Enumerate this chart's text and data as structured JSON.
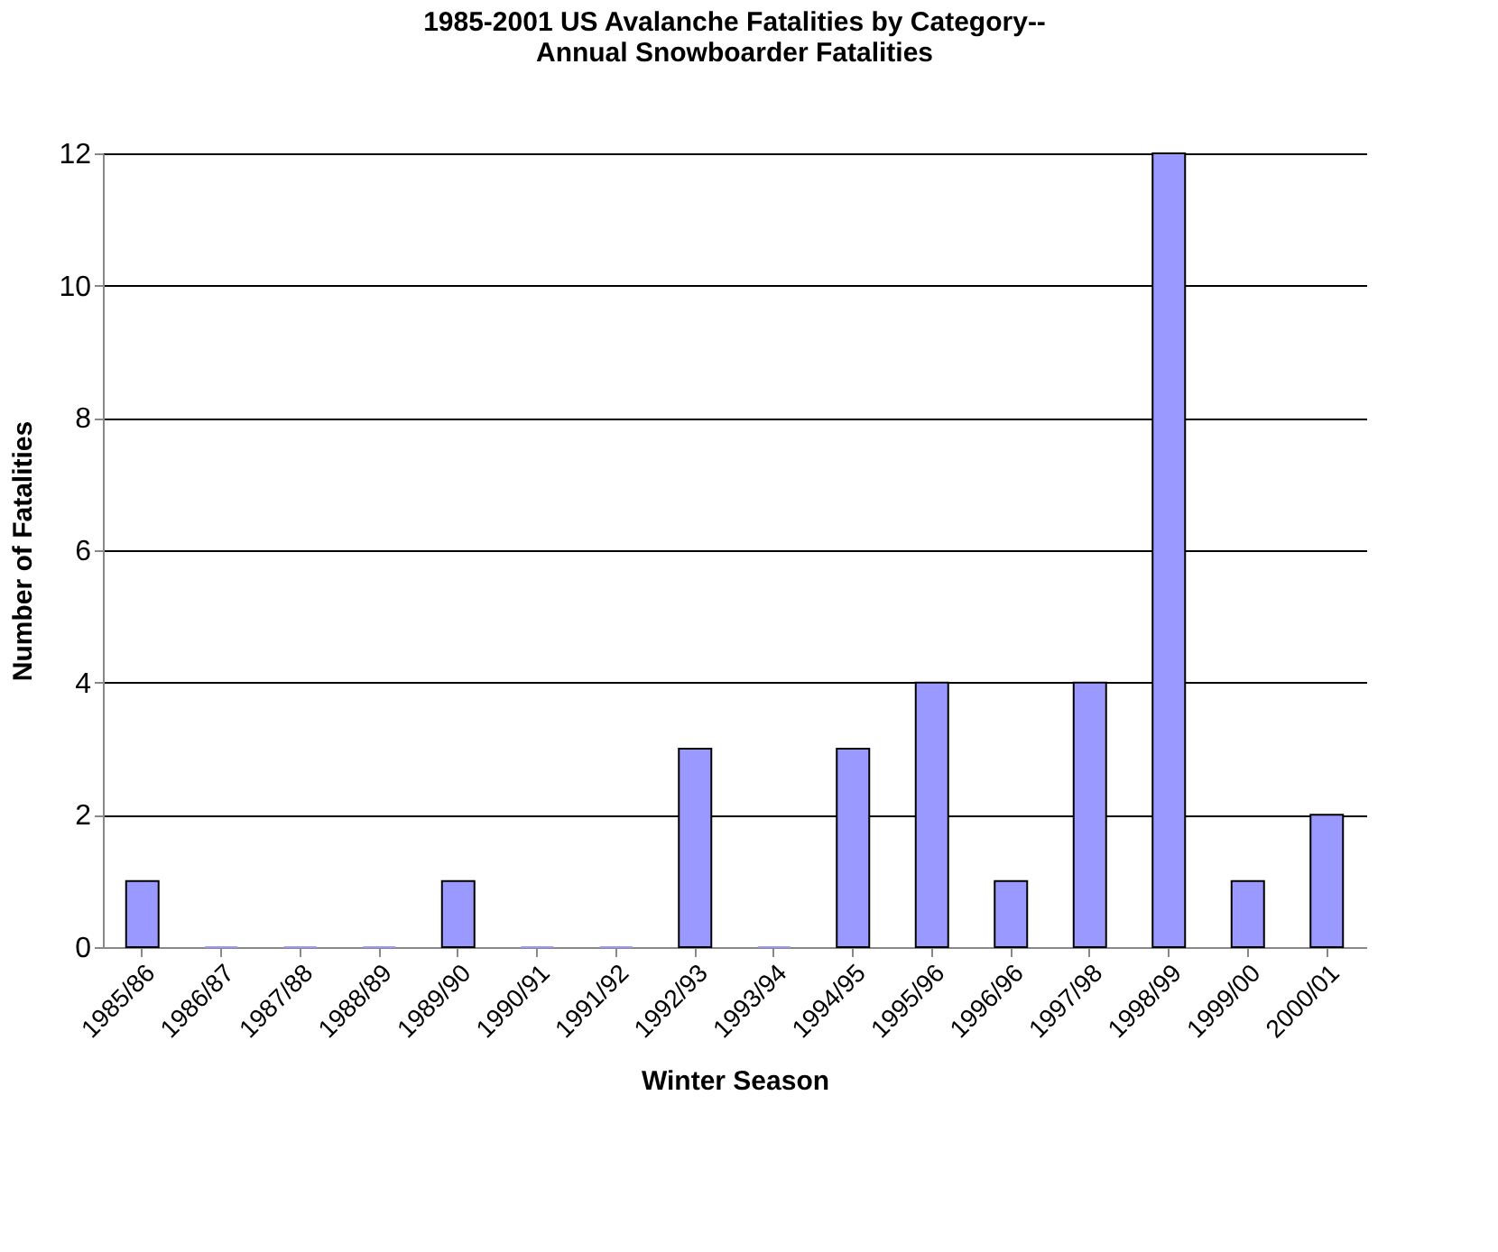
{
  "chart_data": {
    "type": "bar",
    "title": [
      "1985-2001 US Avalanche Fatalities by Category--",
      "Annual Snowboarder Fatalities"
    ],
    "xlabel": "Winter Season",
    "ylabel": "Number of Fatalities",
    "categories": [
      "1985/86",
      "1986/87",
      "1987/88",
      "1988/89",
      "1989/90",
      "1990/91",
      "1991/92",
      "1992/93",
      "1993/94",
      "1994/95",
      "1995/96",
      "1996/96",
      "1997/98",
      "1998/99",
      "1999/00",
      "2000/01"
    ],
    "values": [
      1,
      0,
      0,
      0,
      1,
      0,
      0,
      3,
      0,
      3,
      4,
      1,
      4,
      12,
      1,
      2
    ],
    "color": "#9999ff",
    "ylim": [
      0,
      12
    ],
    "yticks": [
      0,
      2,
      4,
      6,
      8,
      10,
      12
    ],
    "grid": "y"
  }
}
